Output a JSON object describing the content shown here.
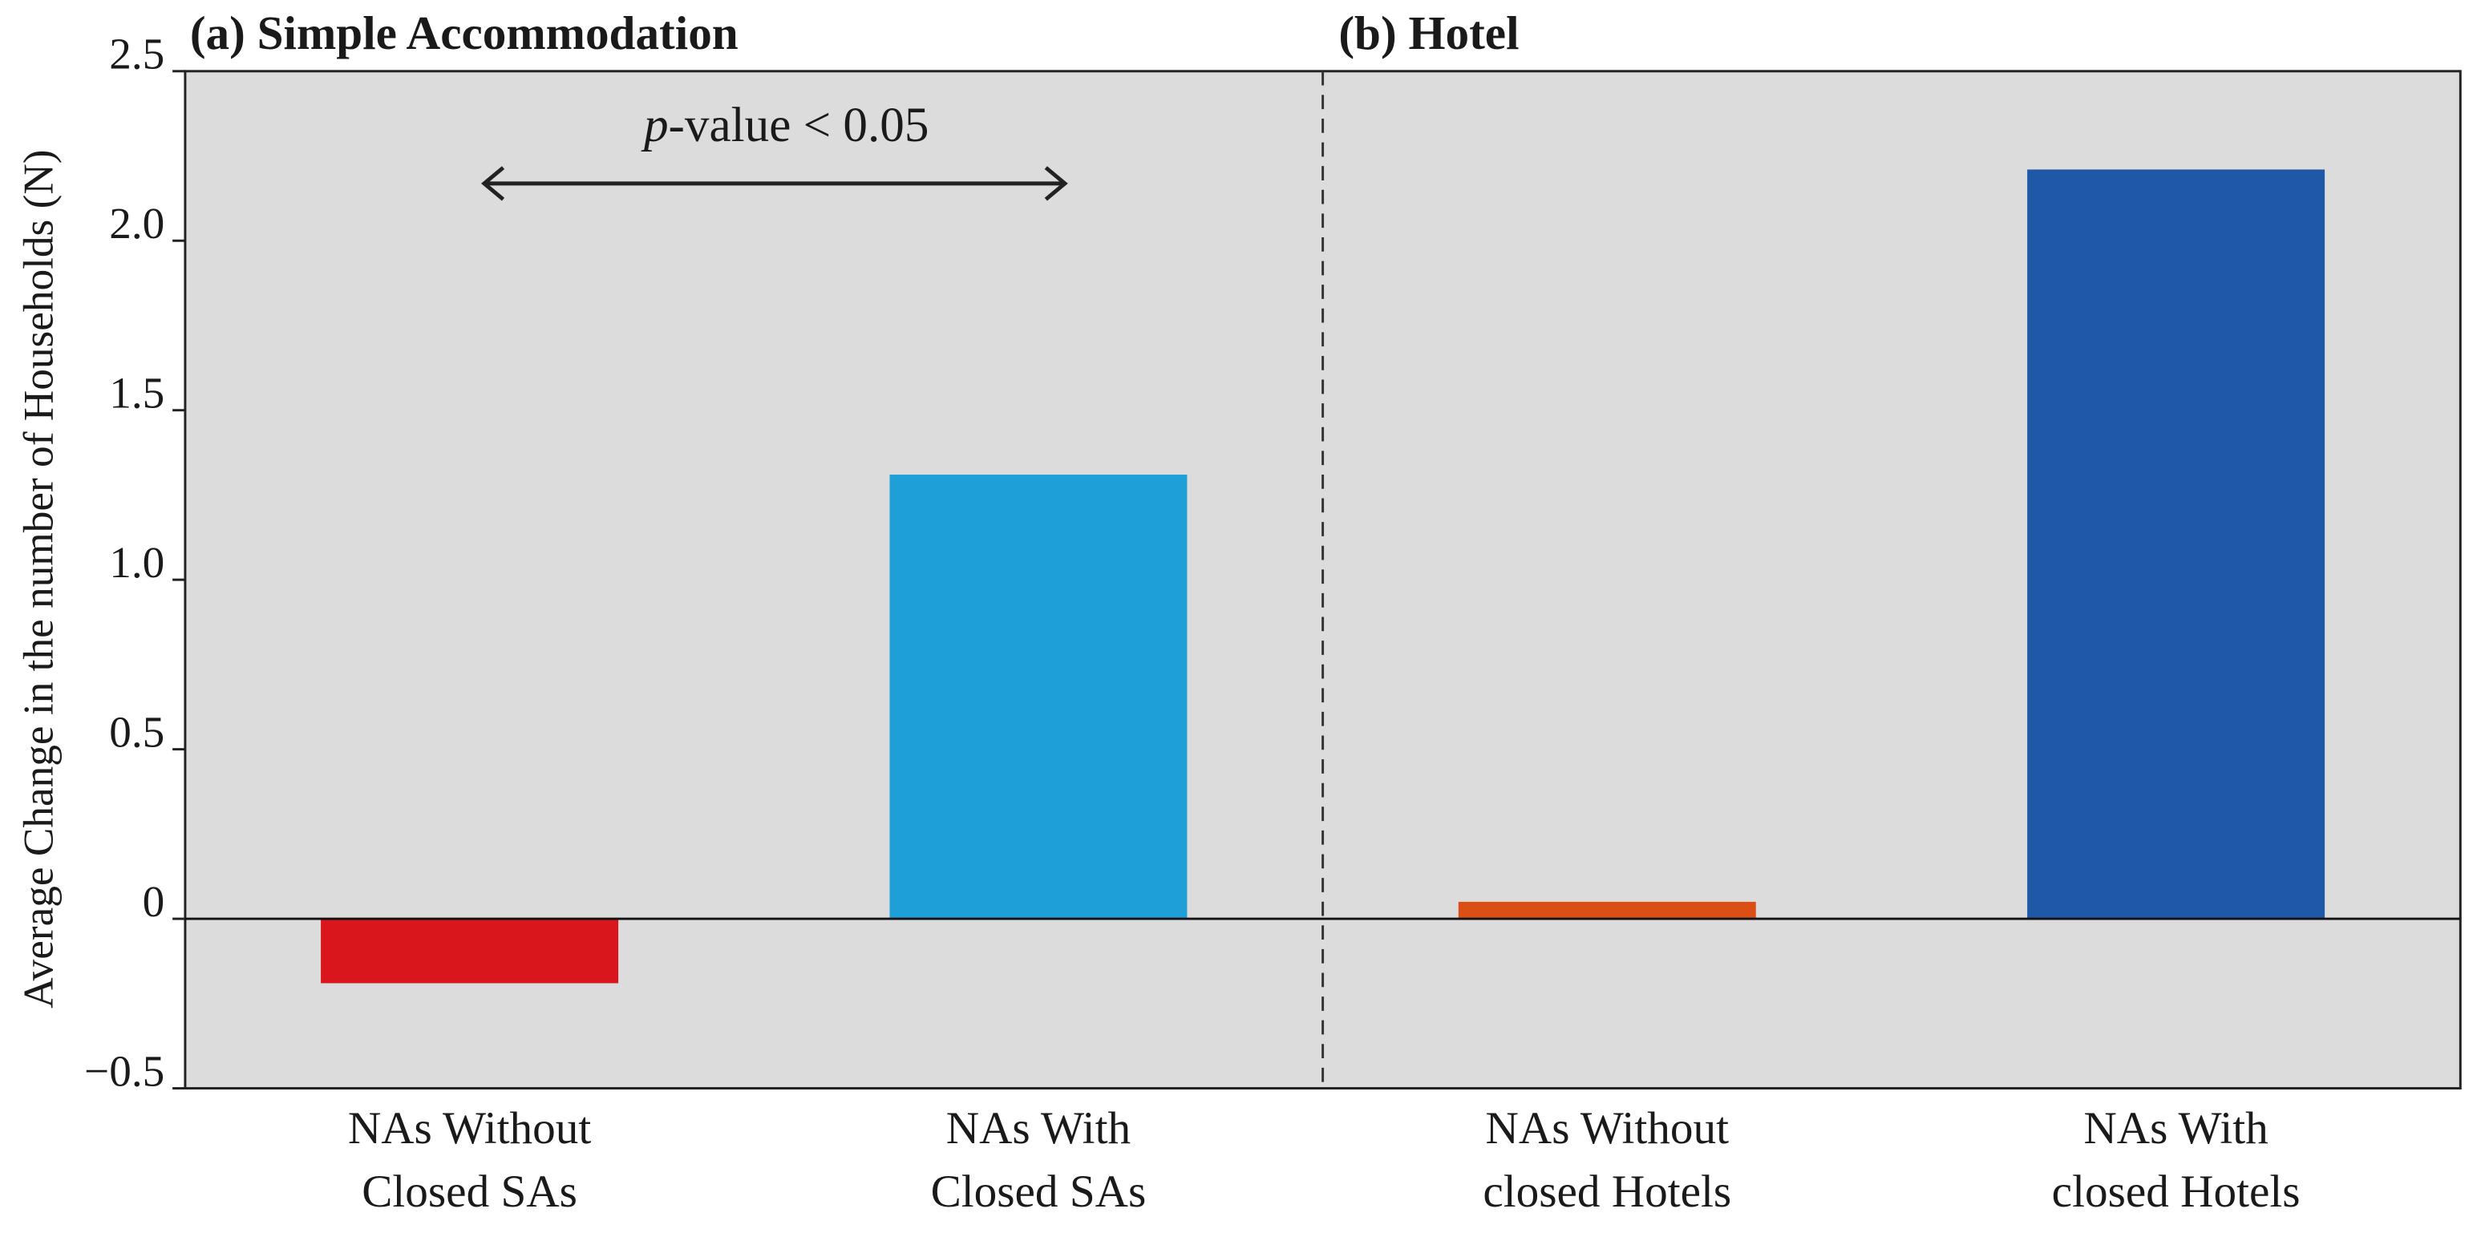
{
  "chart_data": {
    "type": "bar",
    "panel_titles": [
      "(a) Simple Accommodation",
      "(b) Hotel"
    ],
    "y_label": "Average Change in the number of Households (N)",
    "annotation": "p-value < 0.05",
    "categories": [
      [
        "NAs Without",
        "Closed SAs"
      ],
      [
        "NAs With",
        "Closed SAs"
      ],
      [
        "NAs Without",
        "closed Hotels"
      ],
      [
        "NAs With",
        "closed Hotels"
      ]
    ],
    "values": [
      -0.19,
      1.31,
      0.05,
      2.21
    ],
    "colors": [
      "#d9161c",
      "#1e9fd8",
      "#db4f14",
      "#1f58a6"
    ],
    "ylim": [
      -0.5,
      2.5
    ],
    "yticks": [
      {
        "value": -0.5,
        "label": "−0.5"
      },
      0,
      0.5,
      {
        "value": 1,
        "label": "1.0"
      },
      1.5,
      {
        "value": 2,
        "label": "2.0"
      },
      2.5
    ]
  }
}
